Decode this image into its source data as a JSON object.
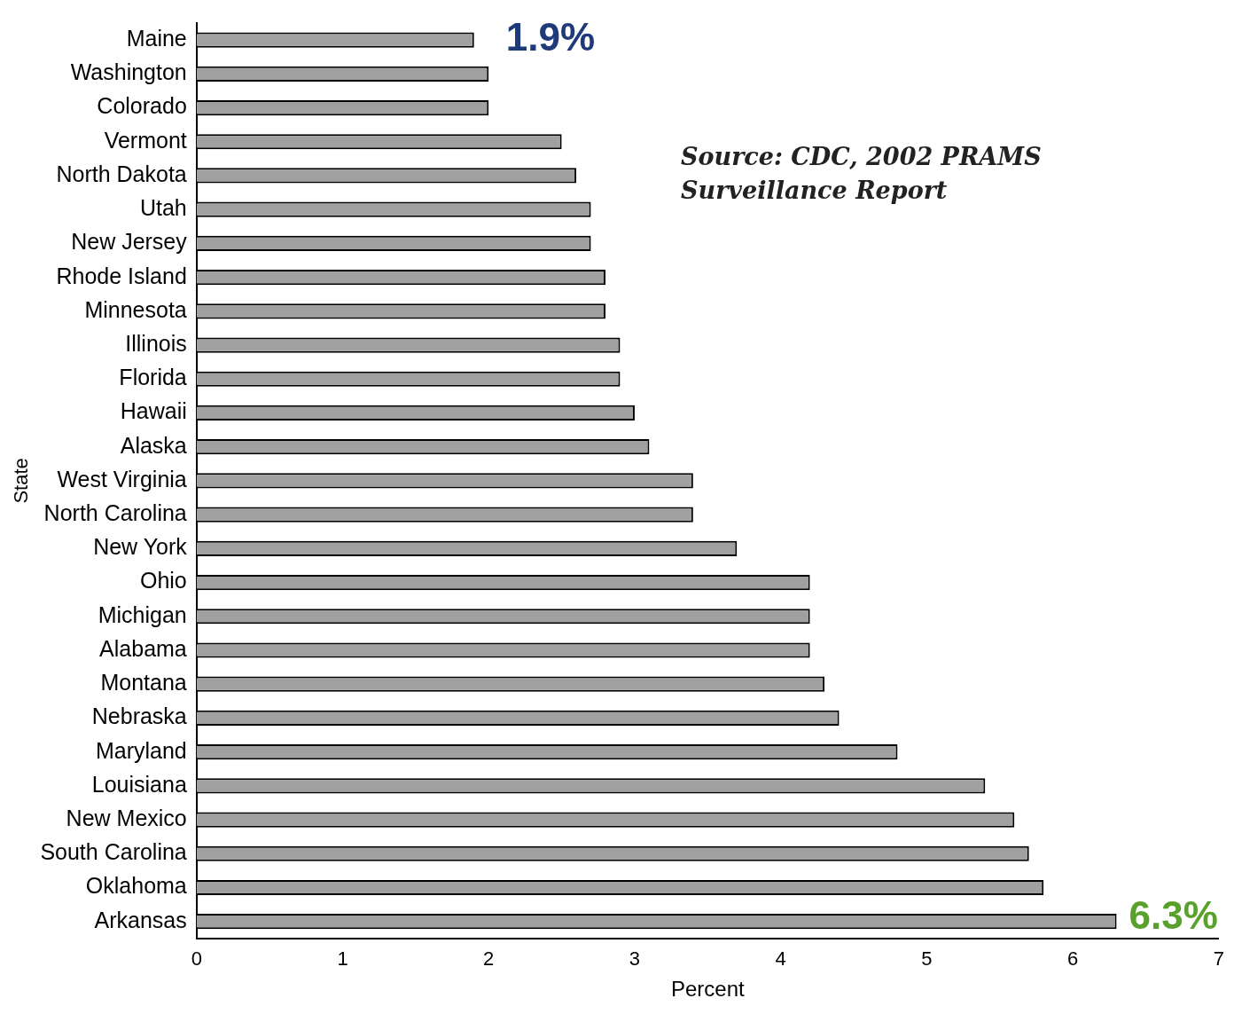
{
  "chart_data": {
    "type": "bar",
    "orientation": "horizontal",
    "xlabel": "Percent",
    "ylabel": "State",
    "categories": [
      "Maine",
      "Washington",
      "Colorado",
      "Vermont",
      "North Dakota",
      "Utah",
      "New Jersey",
      "Rhode Island",
      "Minnesota",
      "Illinois",
      "Florida",
      "Hawaii",
      "Alaska",
      "West Virginia",
      "North Carolina",
      "New York",
      "Ohio",
      "Michigan",
      "Alabama",
      "Montana",
      "Nebraska",
      "Maryland",
      "Louisiana",
      "New Mexico",
      "South Carolina",
      "Oklahoma",
      "Arkansas"
    ],
    "values": [
      1.9,
      2.0,
      2.0,
      2.5,
      2.6,
      2.7,
      2.7,
      2.8,
      2.8,
      2.9,
      2.9,
      3.0,
      3.1,
      3.4,
      3.4,
      3.7,
      4.2,
      4.2,
      4.2,
      4.3,
      4.4,
      4.8,
      5.4,
      5.6,
      5.7,
      5.8,
      6.3
    ],
    "color": "#a0a0a0",
    "xlim": [
      0,
      7
    ],
    "xticks": [
      0,
      1,
      2,
      3,
      4,
      5,
      6,
      7
    ],
    "grid": false,
    "legend": false,
    "annotations": [
      {
        "text": "1.9%",
        "x": 1.9,
        "y": "Maine"
      },
      {
        "text": "6.3%",
        "x": 6.3,
        "y": "Arkansas"
      },
      "Source: CDC, 2002 PRAMS Surveillance Report"
    ]
  }
}
